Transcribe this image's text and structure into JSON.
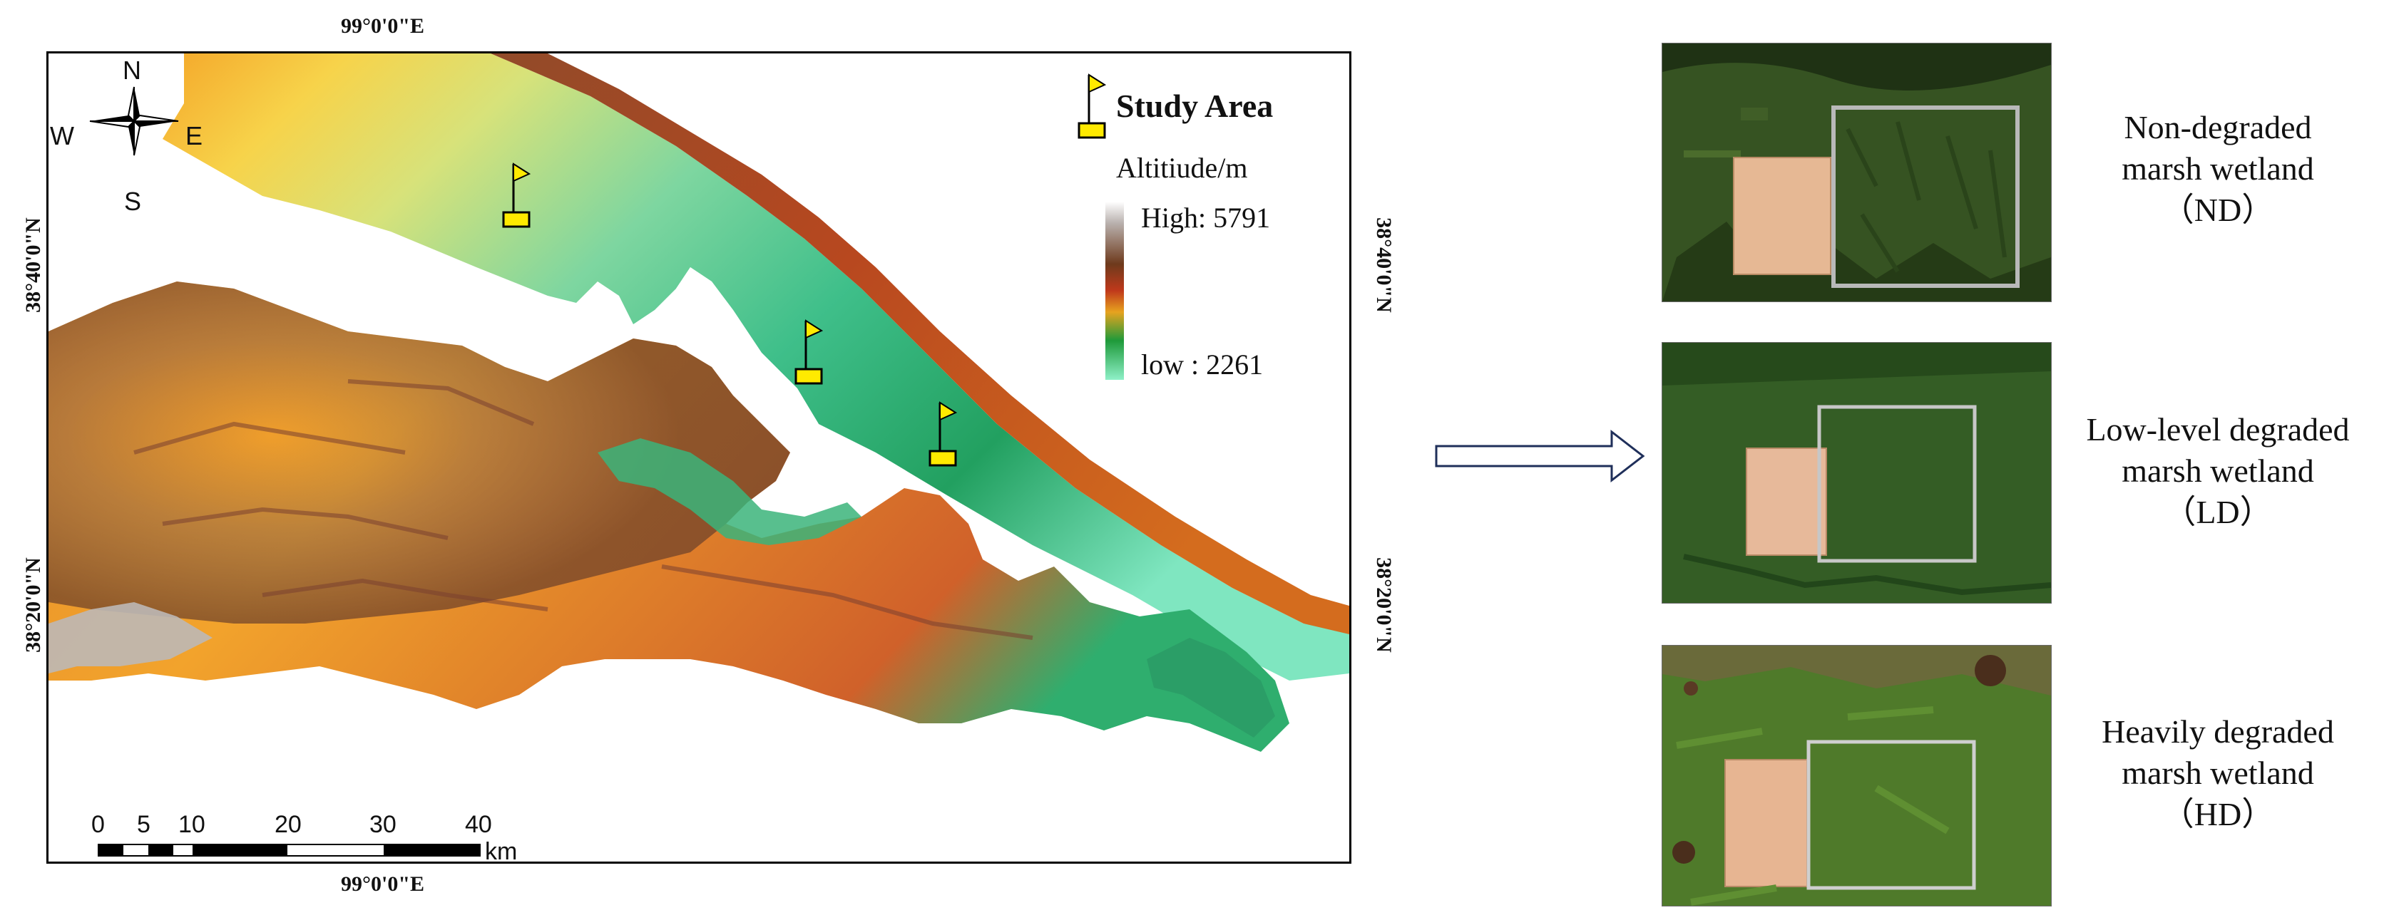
{
  "map": {
    "top_longitude": "99°0'0\"E",
    "bottom_longitude": "99°0'0\"E",
    "left_lat_top": "38°40'0\"N",
    "left_lat_bottom": "38°20'0\"N",
    "right_lat_top": "38°40'0\"N",
    "right_lat_bottom": "38°20'0\"N",
    "compass": {
      "north": "N",
      "south": "S",
      "east": "E",
      "west": "W"
    },
    "legend": {
      "study_area_label": "Study Area",
      "altitude_title": "Altitiude/m",
      "high_label": "High: 5791",
      "low_label": "low : 2261",
      "elevation_colors": [
        "#ffffff",
        "#b9b1ae",
        "#6e3a1c",
        "#c0391b",
        "#e7a31f",
        "#1f9a3a",
        "#8ef0c8"
      ]
    },
    "study_sites": 3,
    "scale_bar": {
      "ticks": [
        "0",
        "5",
        "10",
        "20",
        "30",
        "40"
      ],
      "unit": "km"
    }
  },
  "arrow_icon": "right-arrow-icon",
  "panels": [
    {
      "line1": "Non-degraded",
      "line2": "marsh wetland",
      "code": "（ND）"
    },
    {
      "line1": "Low-level degraded",
      "line2": "marsh wetland",
      "code": "（LD）"
    },
    {
      "line1": "Heavily degraded",
      "line2": "marsh wetland",
      "code": "（HD）"
    }
  ]
}
